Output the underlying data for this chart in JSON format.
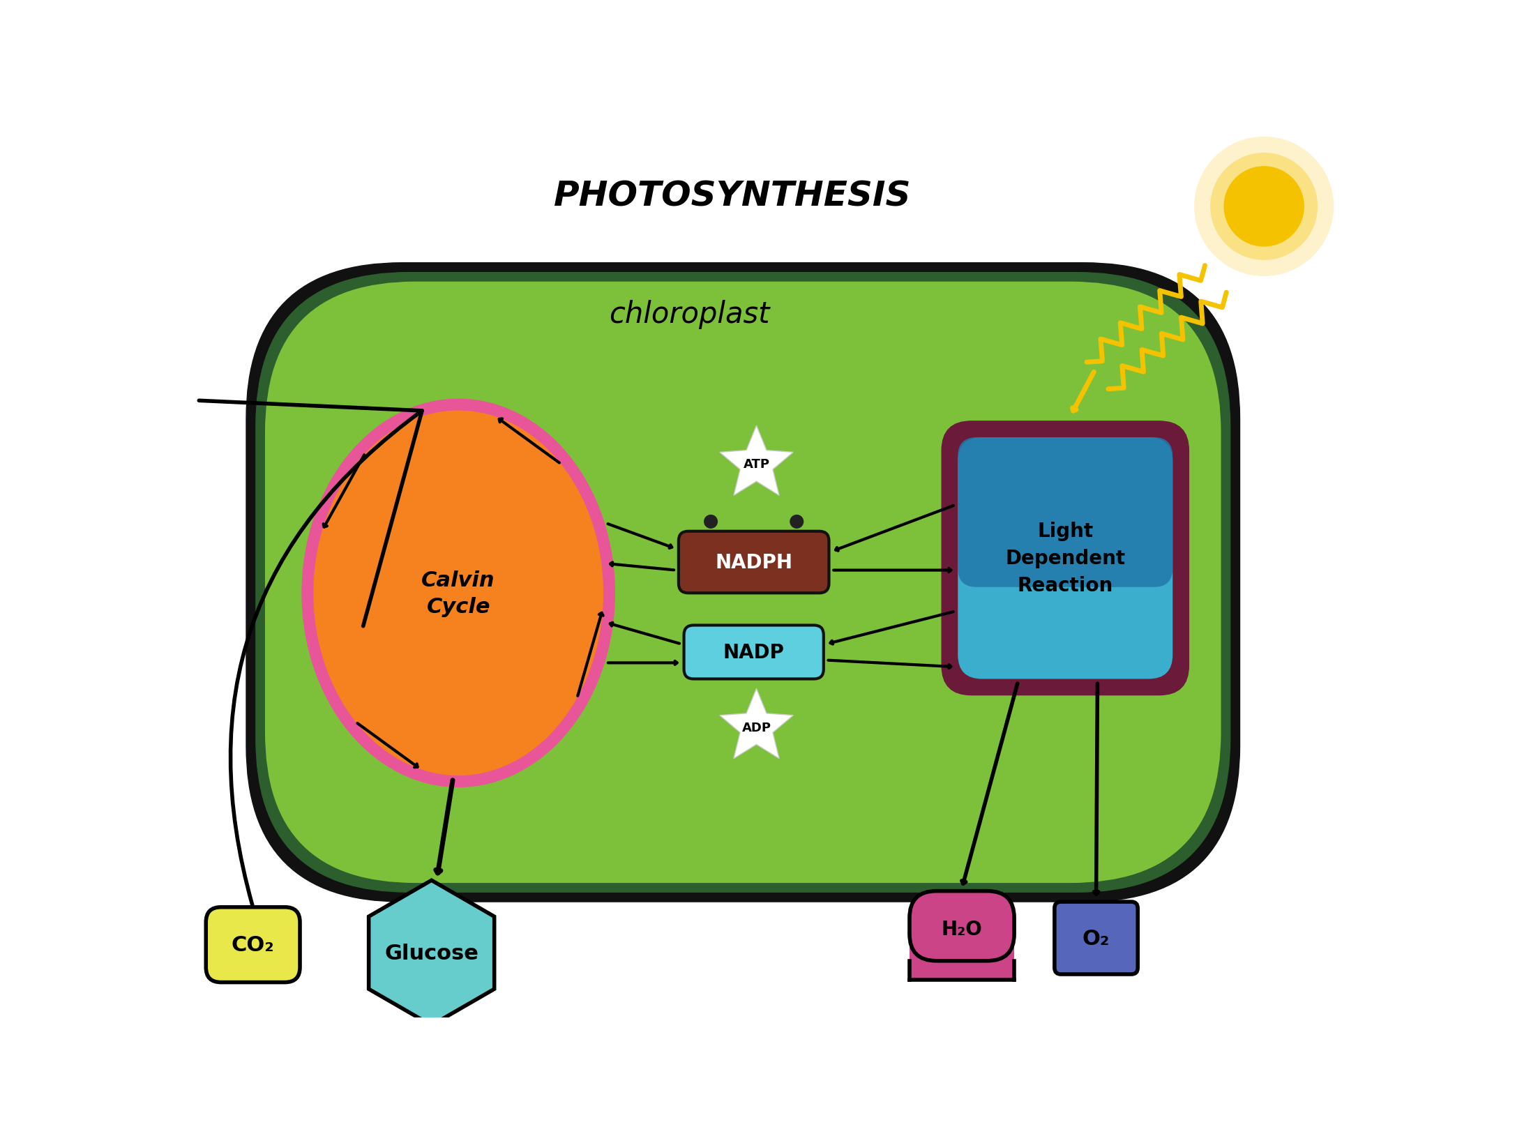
{
  "title": "PHOTOSYNTHESIS",
  "title_fontsize": 36,
  "chloroplast_label": "chloroplast",
  "chloroplast_label_fontsize": 30,
  "bg_color": "#ffffff",
  "chloroplast_fill": "#7dc13a",
  "chloroplast_outer": "#111f11",
  "chloroplast_ring": "#2d5e2d",
  "calvin_fill": "#f5821e",
  "calvin_outline": "#e85599",
  "calvin_label": "Calvin\nCycle",
  "calvin_fontsize": 22,
  "nadph_fill": "#7b3020",
  "nadph_label": "NADPH",
  "nadph_fontsize": 20,
  "nadp_fill": "#5ecfdf",
  "nadp_label": "NADP",
  "nadp_fontsize": 20,
  "light_outer": "#6b1a3a",
  "light_inner_bot": "#3aaecc",
  "light_inner_top": "#2277aa",
  "light_label": "Light\nDependent\nReaction",
  "light_fontsize": 20,
  "atp_label": "ATP",
  "adp_label": "ADP",
  "atp_adp_fontsize": 13,
  "co2_fill": "#e8e84a",
  "co2_label": "CO₂",
  "co2_fontsize": 22,
  "glucose_fill": "#66cccc",
  "glucose_label": "Glucose",
  "glucose_fontsize": 22,
  "h2o_fill": "#cc4488",
  "h2o_label": "H₂O",
  "h2o_fontsize": 20,
  "o2_fill": "#5566bb",
  "o2_label": "O₂",
  "o2_fontsize": 22,
  "sun_color": "#f5c200",
  "wave_color": "#f5c200",
  "arrow_color": "#000000",
  "arrow_lw": 3
}
